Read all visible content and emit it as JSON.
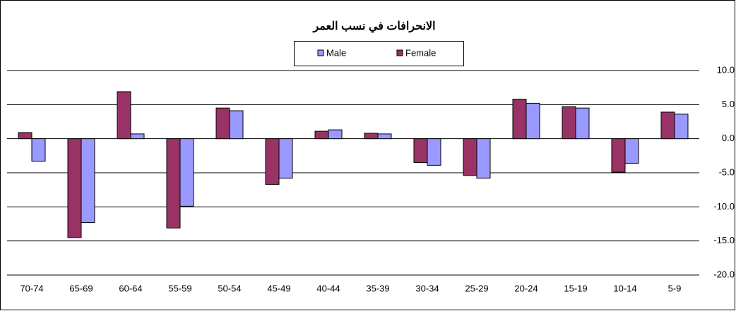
{
  "chart_data": {
    "type": "bar",
    "title": "الانحرافات في نسب العمر",
    "categories": [
      "70-74",
      "65-69",
      "60-64",
      "55-59",
      "50-54",
      "45-49",
      "40-44",
      "35-39",
      "30-34",
      "25-29",
      "20-24",
      "15-19",
      "10-14",
      "5-9"
    ],
    "series": [
      {
        "name": "Male",
        "color": "#9999ff",
        "values": [
          -3.3,
          -12.3,
          0.7,
          -9.9,
          4.1,
          -5.8,
          1.3,
          0.7,
          -3.9,
          -5.8,
          5.2,
          4.5,
          -3.6,
          3.6
        ]
      },
      {
        "name": "Female",
        "color": "#993366",
        "values": [
          0.9,
          -14.5,
          6.9,
          -13.1,
          4.5,
          -6.7,
          1.1,
          0.8,
          -3.5,
          -5.4,
          5.8,
          4.7,
          -4.9,
          3.9
        ]
      }
    ],
    "ylim": [
      -20,
      10
    ],
    "yticks": [
      {
        "value": -20,
        "label": "-20.0"
      },
      {
        "value": -15,
        "label": "-15.0"
      },
      {
        "value": -10,
        "label": "-10.0"
      },
      {
        "value": -5,
        "label": "-5.0"
      },
      {
        "value": 0,
        "label": "0.0"
      },
      {
        "value": 5,
        "label": "5.0"
      },
      {
        "value": 10,
        "label": "10.0"
      }
    ],
    "grid": true
  }
}
